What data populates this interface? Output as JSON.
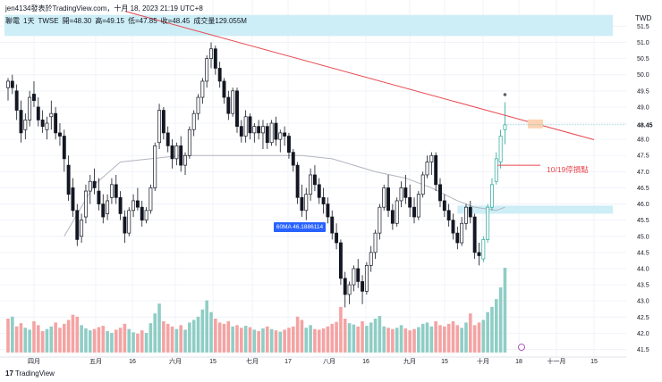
{
  "header": {
    "author_line": "jen4134發表於TradingView.com，十月 18, 2023 21:19 UTC+8"
  },
  "legend": {
    "symbol": "聯電",
    "interval": "1天",
    "exchange": "TWSE",
    "open": "開=48.30",
    "high": "高=49.15",
    "low": "低=47.85",
    "close": "收=48.45",
    "volume": "成交量129.055M"
  },
  "currency": "TWD",
  "ma_tag": "60MA 46.1886114",
  "annotation": "10/19停損點",
  "logo": {
    "mark": "17",
    "text": "TradingView"
  },
  "colors": {
    "up": "#26a69a",
    "down": "#ef5350",
    "up_volume": "#8fcdc5",
    "down_volume": "#f4a3a3",
    "trendline": "#e8474f",
    "ma_line": "#b2b5be",
    "zone_fill": "#cdeef6",
    "last_price_box": "#fbd3b4"
  },
  "chart_data": {
    "type": "candlestick",
    "title": "",
    "y_axis": {
      "side": "right",
      "ticks": [
        "51.5",
        "51.0",
        "50.5",
        "50.0",
        "49.5",
        "49.0",
        "48.5",
        "48.0",
        "47.5",
        "47.0",
        "46.5",
        "46.0",
        "45.5",
        "45.0",
        "44.5",
        "44.0",
        "43.5",
        "43.0",
        "42.5",
        "42.0",
        "41.5"
      ],
      "last_price": "48.45",
      "range": [
        41.2,
        51.7
      ]
    },
    "x_axis": {
      "ticks": [
        "四月",
        "五月",
        "16",
        "六月",
        "15",
        "七月",
        "17",
        "八月",
        "16",
        "九月",
        "15",
        "十月",
        "18",
        "十一月",
        "15"
      ]
    },
    "grid": true,
    "candles_ohlc": [
      [
        49.6,
        49.9,
        49.2,
        49.8
      ],
      [
        49.8,
        50.0,
        49.4,
        49.6
      ],
      [
        49.5,
        49.7,
        48.6,
        48.9
      ],
      [
        48.9,
        49.2,
        47.9,
        48.2
      ],
      [
        48.3,
        48.8,
        48.0,
        48.6
      ],
      [
        48.6,
        49.5,
        48.4,
        49.3
      ],
      [
        49.4,
        49.8,
        49.0,
        49.2
      ],
      [
        49.0,
        49.3,
        48.4,
        48.6
      ],
      [
        48.6,
        48.9,
        48.2,
        48.4
      ],
      [
        48.3,
        48.7,
        48.0,
        48.5
      ],
      [
        48.7,
        49.2,
        48.3,
        48.8
      ],
      [
        48.8,
        49.0,
        48.0,
        48.2
      ],
      [
        48.2,
        48.5,
        47.8,
        48.1
      ],
      [
        48.1,
        48.3,
        47.0,
        47.4
      ],
      [
        47.2,
        47.5,
        46.1,
        46.3
      ],
      [
        46.5,
        46.8,
        45.6,
        45.8
      ],
      [
        45.8,
        46.0,
        44.7,
        44.9
      ],
      [
        45.0,
        45.7,
        44.8,
        45.5
      ],
      [
        45.6,
        46.6,
        45.4,
        46.4
      ],
      [
        46.4,
        46.9,
        46.0,
        46.7
      ],
      [
        46.7,
        47.1,
        46.3,
        46.5
      ],
      [
        46.4,
        46.8,
        45.8,
        46.0
      ],
      [
        46.0,
        46.3,
        45.4,
        45.6
      ],
      [
        45.7,
        46.3,
        45.5,
        46.1
      ],
      [
        46.2,
        46.8,
        46.0,
        46.6
      ],
      [
        46.6,
        46.9,
        46.0,
        46.2
      ],
      [
        46.2,
        46.4,
        45.5,
        45.7
      ],
      [
        45.6,
        45.8,
        44.8,
        45.1
      ],
      [
        45.1,
        45.9,
        45.0,
        45.8
      ],
      [
        45.8,
        46.3,
        45.6,
        46.1
      ],
      [
        46.1,
        46.5,
        45.8,
        45.9
      ],
      [
        45.9,
        46.1,
        45.3,
        45.5
      ],
      [
        45.5,
        45.9,
        45.4,
        45.8
      ],
      [
        45.8,
        46.6,
        45.7,
        46.5
      ],
      [
        46.5,
        47.9,
        46.4,
        47.8
      ],
      [
        47.9,
        49.1,
        47.7,
        48.9
      ],
      [
        48.9,
        49.0,
        48.0,
        48.2
      ],
      [
        48.2,
        48.4,
        47.6,
        47.8
      ],
      [
        47.8,
        48.0,
        47.1,
        47.4
      ],
      [
        47.4,
        47.9,
        47.2,
        47.8
      ],
      [
        47.8,
        48.1,
        47.0,
        47.2
      ],
      [
        47.2,
        47.6,
        46.9,
        47.5
      ],
      [
        47.5,
        48.4,
        47.4,
        48.3
      ],
      [
        48.3,
        48.9,
        48.1,
        48.8
      ],
      [
        48.8,
        49.4,
        48.6,
        49.3
      ],
      [
        49.3,
        49.9,
        49.1,
        49.8
      ],
      [
        49.8,
        50.6,
        49.6,
        50.5
      ],
      [
        50.5,
        51.0,
        50.2,
        50.8
      ],
      [
        50.8,
        50.9,
        50.0,
        50.2
      ],
      [
        50.2,
        50.4,
        49.6,
        49.8
      ],
      [
        49.8,
        49.9,
        49.1,
        49.3
      ],
      [
        49.3,
        49.5,
        48.6,
        48.8
      ],
      [
        48.8,
        49.6,
        48.7,
        49.5
      ],
      [
        49.5,
        49.6,
        48.2,
        48.4
      ],
      [
        48.4,
        48.6,
        47.9,
        48.1
      ],
      [
        48.1,
        48.9,
        47.9,
        48.7
      ],
      [
        48.7,
        48.8,
        48.0,
        48.2
      ],
      [
        48.2,
        48.5,
        47.9,
        48.4
      ],
      [
        48.4,
        48.6,
        48.0,
        48.2
      ],
      [
        48.2,
        48.6,
        47.7,
        48.4
      ],
      [
        48.4,
        48.5,
        47.7,
        47.9
      ],
      [
        47.9,
        48.6,
        47.8,
        48.5
      ],
      [
        48.5,
        48.7,
        47.8,
        48.0
      ],
      [
        48.0,
        48.3,
        47.6,
        48.2
      ],
      [
        48.2,
        48.4,
        47.8,
        48.1
      ],
      [
        48.1,
        48.2,
        47.4,
        47.6
      ],
      [
        47.6,
        47.7,
        47.0,
        47.2
      ],
      [
        47.2,
        47.3,
        46.0,
        46.2
      ],
      [
        46.2,
        46.6,
        45.6,
        45.8
      ],
      [
        45.8,
        46.5,
        45.5,
        46.3
      ],
      [
        46.3,
        47.1,
        46.1,
        46.9
      ],
      [
        46.9,
        47.2,
        46.4,
        46.6
      ],
      [
        46.6,
        46.8,
        46.0,
        46.2
      ],
      [
        46.2,
        46.5,
        45.7,
        46.0
      ],
      [
        46.0,
        46.2,
        45.4,
        45.6
      ],
      [
        45.6,
        45.8,
        44.9,
        45.1
      ],
      [
        45.1,
        45.4,
        44.6,
        44.8
      ],
      [
        44.8,
        44.9,
        43.5,
        43.7
      ],
      [
        43.7,
        43.9,
        42.8,
        43.2
      ],
      [
        43.2,
        43.6,
        42.9,
        43.5
      ],
      [
        43.5,
        44.1,
        43.3,
        44.0
      ],
      [
        44.0,
        44.3,
        43.4,
        43.6
      ],
      [
        43.6,
        43.8,
        42.9,
        43.3
      ],
      [
        43.3,
        44.2,
        43.2,
        44.1
      ],
      [
        44.1,
        44.7,
        43.9,
        44.5
      ],
      [
        44.5,
        45.2,
        44.3,
        45.1
      ],
      [
        45.1,
        46.0,
        44.9,
        45.9
      ],
      [
        45.9,
        46.6,
        45.8,
        46.5
      ],
      [
        46.5,
        46.9,
        45.6,
        45.8
      ],
      [
        45.8,
        46.0,
        45.2,
        45.4
      ],
      [
        45.4,
        46.2,
        45.3,
        46.1
      ],
      [
        46.1,
        46.7,
        45.9,
        46.5
      ],
      [
        46.5,
        46.9,
        46.0,
        46.2
      ],
      [
        46.2,
        46.6,
        45.6,
        45.9
      ],
      [
        45.9,
        46.2,
        45.4,
        45.6
      ],
      [
        45.6,
        46.4,
        45.5,
        46.3
      ],
      [
        46.3,
        47.0,
        46.2,
        46.9
      ],
      [
        46.9,
        47.5,
        46.8,
        47.3
      ],
      [
        47.3,
        47.6,
        46.9,
        47.5
      ],
      [
        47.5,
        47.6,
        46.4,
        46.6
      ],
      [
        46.6,
        46.8,
        45.9,
        46.1
      ],
      [
        46.1,
        46.3,
        45.6,
        45.8
      ],
      [
        45.8,
        46.0,
        45.3,
        45.5
      ],
      [
        45.5,
        45.7,
        44.9,
        45.1
      ],
      [
        45.1,
        45.3,
        44.6,
        44.8
      ],
      [
        44.8,
        45.6,
        44.7,
        45.4
      ],
      [
        45.4,
        46.0,
        45.2,
        45.9
      ],
      [
        45.9,
        46.1,
        45.4,
        45.6
      ],
      [
        45.6,
        45.7,
        44.3,
        44.5
      ],
      [
        44.5,
        44.8,
        44.1,
        44.4
      ],
      [
        44.3,
        45.0,
        44.2,
        44.9
      ],
      [
        44.9,
        46.0,
        44.8,
        45.9
      ],
      [
        45.9,
        46.8,
        45.8,
        46.6
      ],
      [
        46.7,
        47.6,
        46.6,
        47.4
      ],
      [
        47.3,
        48.3,
        47.1,
        48.1
      ],
      [
        48.3,
        49.15,
        47.85,
        48.45
      ]
    ],
    "volume_bars": [
      "d",
      "u",
      "d",
      "d",
      "u",
      "u",
      "d",
      "d",
      "d",
      "u",
      "u",
      "d",
      "d",
      "d",
      "d",
      "d",
      "d",
      "u",
      "u",
      "u",
      "d",
      "d",
      "d",
      "u",
      "u",
      "d",
      "d",
      "d",
      "u",
      "u",
      "d",
      "d",
      "u",
      "u",
      "u",
      "u",
      "d",
      "d",
      "d",
      "u",
      "d",
      "u",
      "u",
      "u",
      "u",
      "u",
      "u",
      "u",
      "d",
      "d",
      "d",
      "d",
      "u",
      "d",
      "d",
      "u",
      "d",
      "u",
      "d",
      "u",
      "d",
      "u",
      "d",
      "u",
      "d",
      "d",
      "d",
      "d",
      "d",
      "u",
      "u",
      "d",
      "d",
      "d",
      "d",
      "d",
      "d",
      "d",
      "d",
      "u",
      "u",
      "d",
      "d",
      "u",
      "u",
      "u",
      "u",
      "u",
      "d",
      "d",
      "u",
      "u",
      "d",
      "d",
      "d",
      "u",
      "u",
      "u",
      "u",
      "d",
      "d",
      "d",
      "d",
      "d",
      "d",
      "u",
      "u",
      "d",
      "d",
      "d",
      "u",
      "u",
      "u",
      "u",
      "u",
      "u"
    ],
    "volume_values": [
      52,
      55,
      40,
      45,
      38,
      35,
      48,
      42,
      33,
      36,
      40,
      46,
      38,
      44,
      50,
      58,
      55,
      42,
      37,
      34,
      36,
      39,
      41,
      33,
      30,
      35,
      38,
      44,
      36,
      31,
      29,
      34,
      30,
      45,
      60,
      75,
      48,
      44,
      40,
      36,
      42,
      35,
      46,
      50,
      55,
      66,
      80,
      62,
      52,
      46,
      44,
      48,
      40,
      42,
      38,
      41,
      39,
      35,
      33,
      37,
      40,
      36,
      34,
      32,
      35,
      38,
      40,
      55,
      50,
      38,
      42,
      36,
      35,
      37,
      40,
      44,
      47,
      70,
      52,
      45,
      43,
      40,
      48,
      41,
      46,
      52,
      56,
      40,
      38,
      36,
      38,
      42,
      37,
      34,
      36,
      39,
      44,
      46,
      40,
      48,
      42,
      40,
      44,
      48,
      42,
      38,
      46,
      60,
      42,
      46,
      50,
      62,
      70,
      82,
      100,
      130
    ],
    "moving_average": {
      "name": "60MA",
      "value": "46.1886114",
      "points": [
        [
          13,
          45.0
        ],
        [
          20,
          46.6
        ],
        [
          26,
          47.3
        ],
        [
          33,
          47.4
        ],
        [
          40,
          47.5
        ],
        [
          50,
          47.5
        ],
        [
          60,
          47.5
        ],
        [
          68,
          47.5
        ],
        [
          75,
          47.4
        ],
        [
          80,
          47.2
        ],
        [
          85,
          47.0
        ],
        [
          92,
          46.8
        ],
        [
          98,
          46.5
        ],
        [
          104,
          46.1
        ],
        [
          108,
          45.9
        ],
        [
          113,
          45.8
        ],
        [
          115,
          45.9
        ]
      ]
    },
    "trendline": {
      "from": [
        19,
        51.9
      ],
      "to": [
        140,
        48.1
      ]
    },
    "zones": [
      {
        "price_from": 51.2,
        "price_to": 51.85,
        "index_from": -1,
        "index_to": 140
      },
      {
        "price_from": 45.7,
        "price_to": 45.95,
        "index_from": 104,
        "index_to": 140
      }
    ],
    "stop_line": {
      "price": 47.2,
      "label": "10/19停損點"
    },
    "last_price_marker": {
      "price": 48.45
    }
  }
}
